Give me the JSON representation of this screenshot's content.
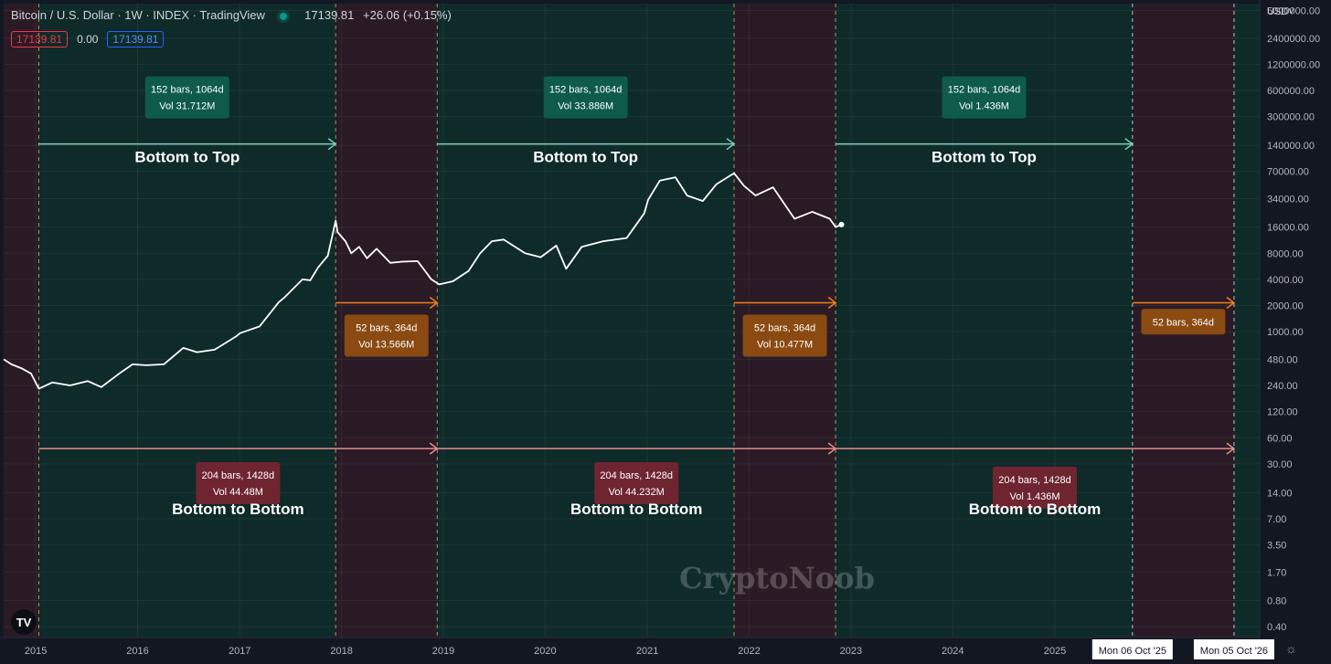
{
  "header": {
    "title": "Bitcoin / U.S. Dollar · 1W · INDEX · TradingView",
    "price": "17139.81",
    "change": "+26.06 (+0.15%)",
    "bid": "17139.81",
    "spread": "0.00",
    "ask": "17139.81",
    "currency": "USD",
    "currency_caret": "˅"
  },
  "watermark": "CryptoNoob",
  "colors": {
    "background": "#131722",
    "bull_zone": "#0e2a29",
    "bear_zone": "#2a1a25",
    "bottom_to_top": "#7fcfb2",
    "top_to_bottom": "#ef7f1a",
    "bottom_to_bottom": "#e58e8e",
    "label_green": "#0e5a4b",
    "label_orange": "#8a4a11",
    "label_red": "#6e2530"
  },
  "chart_data": {
    "type": "line",
    "title": "Bitcoin / U.S. Dollar · 1W · INDEX · TradingView",
    "y_scale": "log",
    "ylim": [
      0.3,
      6000000
    ],
    "y_ticks": [
      "5000000.00",
      "2400000.00",
      "1200000.00",
      "600000.00",
      "300000.00",
      "140000.00",
      "70000.00",
      "34000.00",
      "16000.00",
      "8000.00",
      "4000.00",
      "2000.00",
      "1000.00",
      "480.00",
      "240.00",
      "120.00",
      "60.00",
      "30.00",
      "14.00",
      "7.00",
      "3.50",
      "1.70",
      "0.80",
      "0.40"
    ],
    "xlim": [
      "2014-09-08",
      "2027-01-05"
    ],
    "x_ticks": [
      "2015",
      "2016",
      "2017",
      "2018",
      "2019",
      "2020",
      "2021",
      "2022",
      "2023",
      "2024",
      "2025"
    ],
    "x_flags": [
      "Mon 06 Oct '25",
      "Mon 05 Oct '26"
    ],
    "series": [
      {
        "name": "Bitcoin / U.S. Dollar",
        "x": [
          "2014-09-08",
          "2014-10-06",
          "2014-11-10",
          "2014-12-15",
          "2015-01-12",
          "2015-03-02",
          "2015-05-04",
          "2015-07-06",
          "2015-08-24",
          "2015-11-02",
          "2015-12-14",
          "2016-02-01",
          "2016-04-04",
          "2016-06-13",
          "2016-08-01",
          "2016-10-03",
          "2016-12-19",
          "2017-01-02",
          "2017-03-13",
          "2017-05-22",
          "2017-06-12",
          "2017-08-14",
          "2017-09-11",
          "2017-10-09",
          "2017-11-13",
          "2017-12-11",
          "2017-12-18",
          "2018-01-15",
          "2018-02-05",
          "2018-03-05",
          "2018-04-02",
          "2018-05-07",
          "2018-06-25",
          "2018-08-06",
          "2018-10-01",
          "2018-11-19",
          "2018-12-17",
          "2019-02-04",
          "2019-04-01",
          "2019-05-13",
          "2019-06-24",
          "2019-08-05",
          "2019-10-21",
          "2019-12-16",
          "2020-02-10",
          "2020-03-16",
          "2020-05-11",
          "2020-07-27",
          "2020-10-19",
          "2020-12-21",
          "2021-01-04",
          "2021-02-15",
          "2021-04-12",
          "2021-05-24",
          "2021-07-19",
          "2021-09-06",
          "2021-11-08",
          "2021-12-13",
          "2022-01-24",
          "2022-03-28",
          "2022-05-09",
          "2022-06-13",
          "2022-08-15",
          "2022-10-17",
          "2022-11-07",
          "2022-11-28"
        ],
        "values": [
          480,
          420,
          380,
          330,
          220,
          260,
          240,
          270,
          230,
          340,
          420,
          410,
          420,
          650,
          580,
          620,
          880,
          960,
          1150,
          2200,
          2500,
          4000,
          3900,
          5500,
          7500,
          19000,
          14000,
          11000,
          8000,
          9500,
          7000,
          9000,
          6200,
          6400,
          6500,
          4000,
          3500,
          3800,
          5000,
          8000,
          11000,
          11500,
          8000,
          7200,
          9800,
          5300,
          9500,
          11000,
          12000,
          23000,
          33000,
          55000,
          60000,
          37000,
          32000,
          50000,
          67000,
          48000,
          37000,
          46000,
          29000,
          20000,
          24000,
          20000,
          16000,
          17139.81
        ]
      }
    ],
    "zones": [
      {
        "type": "bear",
        "from": "2014-09-08",
        "to": "2015-01-12"
      },
      {
        "type": "bull",
        "from": "2015-01-12",
        "to": "2017-12-11"
      },
      {
        "type": "bear",
        "from": "2017-12-11",
        "to": "2018-12-10"
      },
      {
        "type": "bull",
        "from": "2018-12-10",
        "to": "2021-11-08"
      },
      {
        "type": "bear",
        "from": "2021-11-08",
        "to": "2022-11-07"
      },
      {
        "type": "bull",
        "from": "2022-11-07",
        "to": "2025-10-06"
      },
      {
        "type": "bear",
        "from": "2025-10-06",
        "to": "2026-10-05"
      },
      {
        "type": "bull",
        "from": "2026-10-05",
        "to": "2027-01-05"
      }
    ],
    "measures": [
      {
        "kind": "bottom_to_top",
        "from": "2015-01-12",
        "to": "2017-12-11",
        "y": 145000,
        "box": [
          "152 bars, 1064d",
          "Vol 31.712M"
        ],
        "box_y": 500000,
        "title": "Bottom to Top"
      },
      {
        "kind": "bottom_to_top",
        "from": "2018-12-10",
        "to": "2021-11-08",
        "y": 145000,
        "box": [
          "152 bars, 1064d",
          "Vol 33.886M"
        ],
        "box_y": 500000,
        "title": "Bottom to Top"
      },
      {
        "kind": "bottom_to_top",
        "from": "2022-11-07",
        "to": "2025-10-06",
        "y": 145000,
        "box": [
          "152 bars, 1064d",
          "Vol 1.436M"
        ],
        "box_y": 500000,
        "title": "Bottom to Top"
      },
      {
        "kind": "top_to_bottom",
        "from": "2017-12-11",
        "to": "2018-12-10",
        "y": 2150,
        "box": [
          "52 bars, 364d",
          "Vol 13.566M"
        ],
        "box_y": 900,
        "title": ""
      },
      {
        "kind": "top_to_bottom",
        "from": "2021-11-08",
        "to": "2022-11-07",
        "y": 2150,
        "box": [
          "52 bars, 364d",
          "Vol 10.477M"
        ],
        "box_y": 900,
        "title": ""
      },
      {
        "kind": "top_to_bottom",
        "from": "2025-10-06",
        "to": "2026-10-05",
        "y": 2150,
        "box": [
          "52 bars, 364d"
        ],
        "box_y": 1300,
        "title": ""
      },
      {
        "kind": "bottom_to_bottom",
        "from": "2015-01-12",
        "to": "2018-12-10",
        "y": 45,
        "box": [
          "204 bars, 1428d",
          "Vol 44.48M"
        ],
        "box_y": 18,
        "title": "Bottom to Bottom"
      },
      {
        "kind": "bottom_to_bottom",
        "from": "2018-12-10",
        "to": "2022-11-07",
        "y": 45,
        "box": [
          "204 bars, 1428d",
          "Vol 44.232M"
        ],
        "box_y": 18,
        "title": "Bottom to Bottom"
      },
      {
        "kind": "bottom_to_bottom",
        "from": "2022-11-07",
        "to": "2026-10-05",
        "y": 45,
        "box": [
          "204 bars, 1428d",
          "Vol 1.436M"
        ],
        "box_y": 16,
        "title": "Bottom to Bottom"
      }
    ],
    "grid": true,
    "legend": "none"
  }
}
